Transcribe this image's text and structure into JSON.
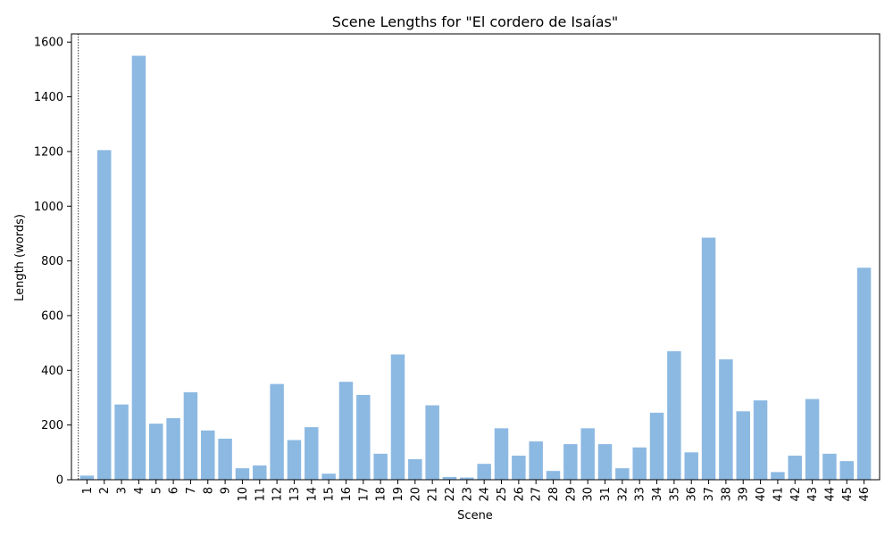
{
  "chart_data": {
    "type": "bar",
    "title": "Scene Lengths for \"El cordero de Isaías\"",
    "xlabel": "Scene",
    "ylabel": "Length (words)",
    "ylim": [
      0,
      1630
    ],
    "yticks": [
      0,
      200,
      400,
      600,
      800,
      1000,
      1200,
      1400,
      1600
    ],
    "grid": false,
    "bar_color": "#5b9bd5",
    "bar_opacity": 0.7,
    "categories": [
      "1",
      "2",
      "3",
      "4",
      "5",
      "6",
      "7",
      "8",
      "9",
      "10",
      "11",
      "12",
      "13",
      "14",
      "15",
      "16",
      "17",
      "18",
      "19",
      "20",
      "21",
      "22",
      "23",
      "24",
      "25",
      "26",
      "27",
      "28",
      "29",
      "30",
      "31",
      "32",
      "33",
      "34",
      "35",
      "36",
      "37",
      "38",
      "39",
      "40",
      "41",
      "42",
      "43",
      "44",
      "45",
      "46"
    ],
    "values": [
      15,
      1205,
      275,
      1550,
      205,
      225,
      320,
      180,
      150,
      42,
      52,
      350,
      145,
      192,
      22,
      358,
      310,
      95,
      458,
      75,
      272,
      10,
      8,
      58,
      188,
      88,
      140,
      32,
      130,
      188,
      130,
      42,
      118,
      245,
      470,
      100,
      885,
      440,
      250,
      290,
      28,
      88,
      295,
      95,
      68,
      775
    ],
    "reference_line": {
      "x_position_scene_index": 0.5,
      "style": "dotted"
    }
  }
}
